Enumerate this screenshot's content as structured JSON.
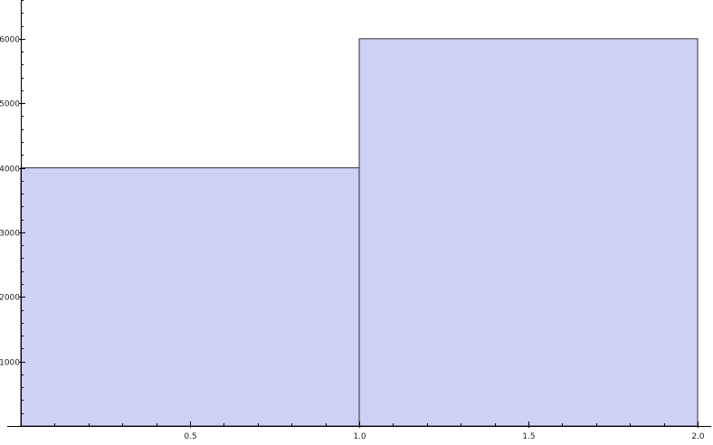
{
  "chart_data": {
    "type": "bar",
    "title": "",
    "xlabel": "",
    "ylabel": "",
    "bins": [
      {
        "x_start": 0.0,
        "x_end": 1.0,
        "value": 4000
      },
      {
        "x_start": 1.0,
        "x_end": 2.0,
        "value": 6000
      }
    ],
    "xlim": [
      0,
      2.04
    ],
    "ylim": [
      0,
      6600
    ],
    "x_ticks": [
      {
        "value": 0.5,
        "label": "0.5"
      },
      {
        "value": 1.0,
        "label": "1.0"
      },
      {
        "value": 1.5,
        "label": "1.5"
      },
      {
        "value": 2.0,
        "label": "2.0"
      }
    ],
    "y_ticks": [
      {
        "value": 1000,
        "label": "1000"
      },
      {
        "value": 2000,
        "label": "2000"
      },
      {
        "value": 3000,
        "label": "3000"
      },
      {
        "value": 4000,
        "label": "4000"
      },
      {
        "value": 5000,
        "label": "5000"
      },
      {
        "value": 6000,
        "label": "6000"
      }
    ],
    "grid": false,
    "colors": {
      "bar_fill": "#ccd1f5",
      "bar_stroke": "#333333",
      "axis": "#000000"
    }
  }
}
